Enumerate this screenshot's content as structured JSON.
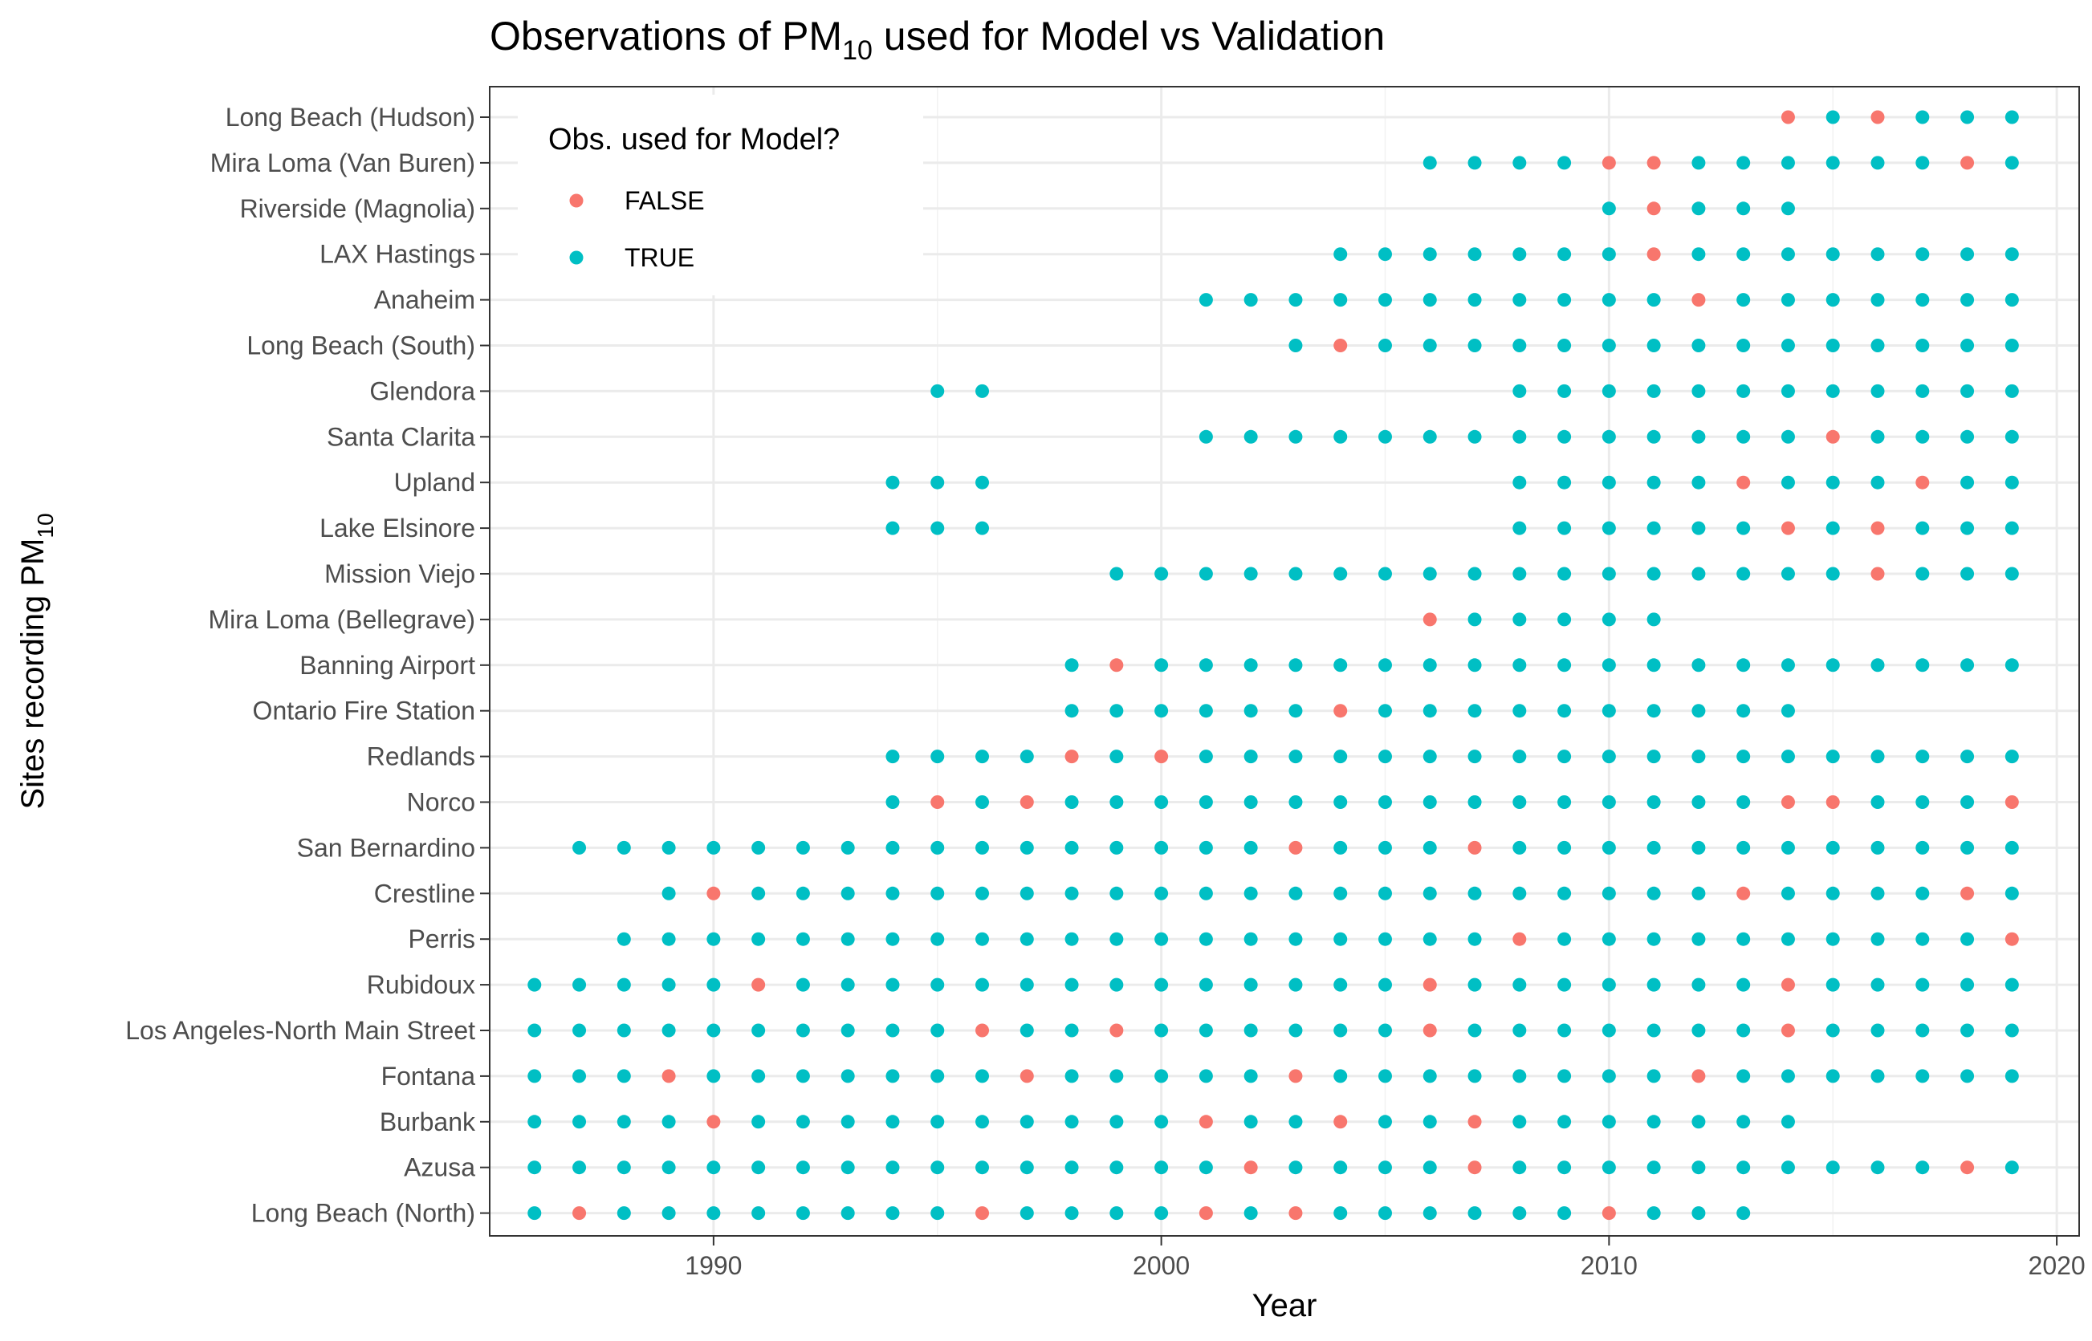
{
  "chart_data": {
    "type": "scatter",
    "title": "Observations of PM",
    "title_subscript": "10",
    "title_suffix": " used for Model vs Validation",
    "xlabel": "Year",
    "ylabel": "Sites recording PM",
    "ylabel_subscript": "10",
    "xlim": [
      1985,
      2020.5
    ],
    "x_ticks": [
      1990,
      2000,
      2010,
      2020
    ],
    "grid": true,
    "legend": {
      "title": "Obs. used for Model?",
      "placement": "top-left",
      "entries": [
        {
          "label": "FALSE",
          "color": "#F8766D"
        },
        {
          "label": "TRUE",
          "color": "#00BFC4"
        }
      ]
    },
    "colors": {
      "false": "#F8766D",
      "true": "#00BFC4"
    },
    "sites": [
      {
        "name": "Long Beach (North)",
        "start": 1986,
        "end": 2013,
        "false_years": [
          1987,
          1996,
          2001,
          2003,
          2010
        ]
      },
      {
        "name": "Azusa",
        "start": 1986,
        "end": 2019,
        "false_years": [
          2002,
          2007,
          2018
        ]
      },
      {
        "name": "Burbank",
        "start": 1986,
        "end": 2014,
        "false_years": [
          1990,
          2001,
          2004,
          2007
        ]
      },
      {
        "name": "Fontana",
        "start": 1986,
        "end": 2019,
        "false_years": [
          1989,
          1997,
          2003,
          2012
        ]
      },
      {
        "name": "Los Angeles-North Main Street",
        "start": 1986,
        "end": 2019,
        "false_years": [
          1996,
          1999,
          2006,
          2014
        ]
      },
      {
        "name": "Rubidoux",
        "start": 1986,
        "end": 2019,
        "false_years": [
          1991,
          2006,
          2014
        ]
      },
      {
        "name": "Perris",
        "start": 1988,
        "end": 2019,
        "false_years": [
          2008,
          2019
        ]
      },
      {
        "name": "Crestline",
        "start": 1989,
        "end": 2019,
        "false_years": [
          1990,
          2013,
          2018
        ]
      },
      {
        "name": "San Bernardino",
        "start": 1987,
        "end": 2019,
        "false_years": [
          2003,
          2007
        ]
      },
      {
        "name": "Norco",
        "start": 1994,
        "end": 2019,
        "false_years": [
          1995,
          1997,
          2014,
          2015,
          2019
        ]
      },
      {
        "name": "Redlands",
        "start": 1994,
        "end": 2019,
        "false_years": [
          1998,
          2000
        ]
      },
      {
        "name": "Ontario Fire Station",
        "start": 1998,
        "end": 2014,
        "false_years": [
          2004
        ]
      },
      {
        "name": "Banning Airport",
        "start": 1998,
        "end": 2019,
        "false_years": [
          1999
        ]
      },
      {
        "name": "Mira Loma (Bellegrave)",
        "start": 2006,
        "end": 2011,
        "false_years": [
          2006
        ]
      },
      {
        "name": "Mission Viejo",
        "start": 1999,
        "end": 2019,
        "false_years": [
          2016
        ]
      },
      {
        "name": "Lake Elsinore",
        "years_extra": [
          1994,
          1995,
          1996
        ],
        "start": 2008,
        "end": 2019,
        "false_years": [
          2014,
          2016
        ]
      },
      {
        "name": "Upland",
        "years_extra": [
          1994,
          1995,
          1996
        ],
        "start": 2008,
        "end": 2019,
        "false_years": [
          2013,
          2017
        ]
      },
      {
        "name": "Santa Clarita",
        "start": 2001,
        "end": 2019,
        "false_years": [
          2015
        ]
      },
      {
        "name": "Glendora",
        "years_extra": [
          1995,
          1996
        ],
        "start": 2008,
        "end": 2019,
        "false_years": []
      },
      {
        "name": "Long Beach (South)",
        "start": 2003,
        "end": 2019,
        "false_years": [
          2004
        ]
      },
      {
        "name": "Anaheim",
        "start": 2001,
        "end": 2019,
        "false_years": [
          2012
        ]
      },
      {
        "name": "LAX Hastings",
        "start": 2004,
        "end": 2019,
        "false_years": [
          2011
        ]
      },
      {
        "name": "Riverside (Magnolia)",
        "start": 2010,
        "end": 2014,
        "false_years": [
          2011
        ]
      },
      {
        "name": "Mira Loma (Van Buren)",
        "start": 2006,
        "end": 2019,
        "false_years": [
          2010,
          2011,
          2018
        ]
      },
      {
        "name": "Long Beach (Hudson)",
        "start": 2014,
        "end": 2019,
        "false_years": [
          2014,
          2016
        ]
      }
    ]
  }
}
